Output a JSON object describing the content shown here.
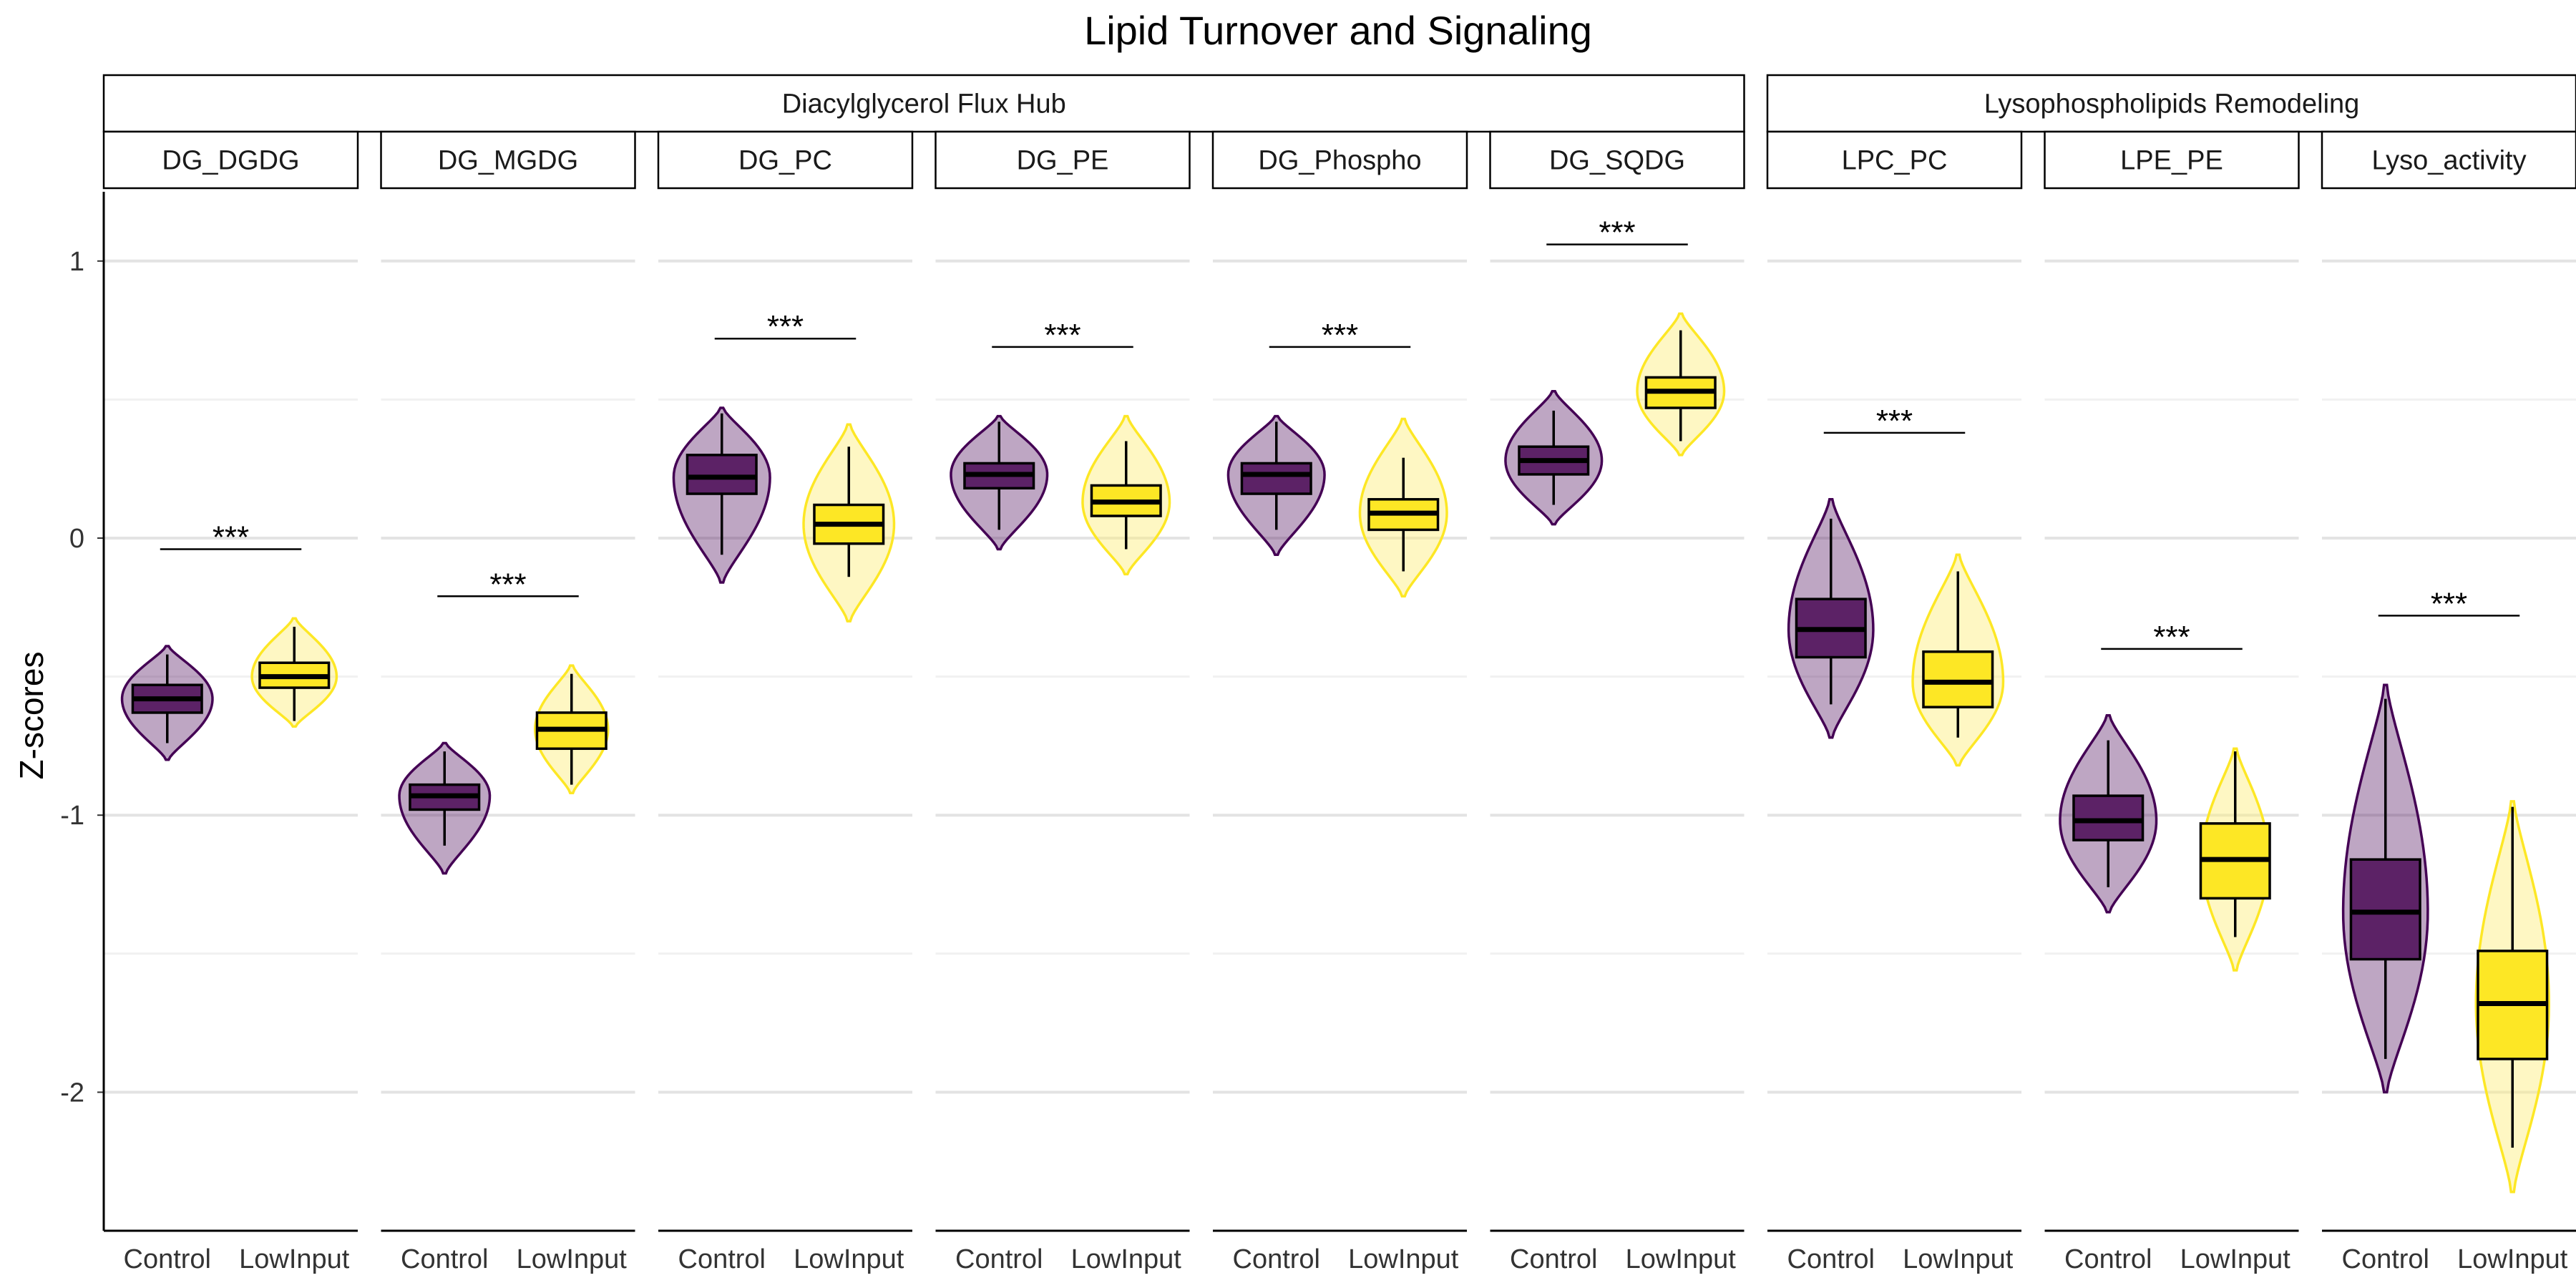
{
  "chart_data": {
    "type": "violin",
    "title": "Lipid Turnover and Signaling",
    "ylabel": "Z-scores",
    "xlabel": "",
    "ylim": [
      -2.5,
      1.25
    ],
    "yticks": [
      1,
      0,
      -1,
      -2
    ],
    "ytick_labels": [
      "1",
      "0",
      "-1",
      "-2"
    ],
    "groups": [
      "Control",
      "LowInput"
    ],
    "colors": {
      "Control": "#440154",
      "Control_box": "#5c2266",
      "LowInput": "#fde725",
      "LowInput_fill": "#fcee7a"
    },
    "grid": true,
    "strips": [
      {
        "label": "Diacylglycerol Flux Hub",
        "panels": [
          "DG_DGDG",
          "DG_MGDG",
          "DG_PC",
          "DG_PE",
          "DG_Phospho",
          "DG_SQDG"
        ]
      },
      {
        "label": "Lysophospholipids Remodeling",
        "panels": [
          "LPC_PC",
          "LPE_PE",
          "Lyso_activity"
        ]
      }
    ],
    "panels": [
      {
        "name": "DG_DGDG",
        "significance": "***",
        "sig_y": -0.04,
        "Control": {
          "vmin": -0.8,
          "vmax": -0.39,
          "whisker_low": -0.74,
          "q1": -0.63,
          "median": -0.58,
          "q3": -0.53,
          "whisker_high": -0.42,
          "vwidth": 0.75
        },
        "LowInput": {
          "vmin": -0.68,
          "vmax": -0.29,
          "whisker_low": -0.66,
          "q1": -0.54,
          "median": -0.5,
          "q3": -0.45,
          "whisker_high": -0.32,
          "vwidth": 0.7
        }
      },
      {
        "name": "DG_MGDG",
        "significance": "***",
        "sig_y": -0.21,
        "Control": {
          "vmin": -1.21,
          "vmax": -0.74,
          "whisker_low": -1.11,
          "q1": -0.98,
          "median": -0.93,
          "q3": -0.89,
          "whisker_high": -0.77,
          "vwidth": 0.75
        },
        "LowInput": {
          "vmin": -0.92,
          "vmax": -0.46,
          "whisker_low": -0.89,
          "q1": -0.76,
          "median": -0.69,
          "q3": -0.63,
          "whisker_high": -0.49,
          "vwidth": 0.6
        }
      },
      {
        "name": "DG_PC",
        "significance": "***",
        "sig_y": 0.72,
        "Control": {
          "vmin": -0.16,
          "vmax": 0.47,
          "whisker_low": -0.06,
          "q1": 0.16,
          "median": 0.22,
          "q3": 0.3,
          "whisker_high": 0.45,
          "vwidth": 0.8
        },
        "LowInput": {
          "vmin": -0.3,
          "vmax": 0.41,
          "whisker_low": -0.14,
          "q1": -0.02,
          "median": 0.05,
          "q3": 0.12,
          "whisker_high": 0.33,
          "vwidth": 0.75
        }
      },
      {
        "name": "DG_PE",
        "significance": "***",
        "sig_y": 0.69,
        "Control": {
          "vmin": -0.04,
          "vmax": 0.44,
          "whisker_low": 0.03,
          "q1": 0.18,
          "median": 0.23,
          "q3": 0.27,
          "whisker_high": 0.42,
          "vwidth": 0.8
        },
        "LowInput": {
          "vmin": -0.13,
          "vmax": 0.44,
          "whisker_low": -0.04,
          "q1": 0.08,
          "median": 0.13,
          "q3": 0.19,
          "whisker_high": 0.35,
          "vwidth": 0.72
        }
      },
      {
        "name": "DG_Phospho",
        "significance": "***",
        "sig_y": 0.69,
        "Control": {
          "vmin": -0.06,
          "vmax": 0.44,
          "whisker_low": 0.03,
          "q1": 0.16,
          "median": 0.23,
          "q3": 0.27,
          "whisker_high": 0.42,
          "vwidth": 0.8
        },
        "LowInput": {
          "vmin": -0.21,
          "vmax": 0.43,
          "whisker_low": -0.12,
          "q1": 0.03,
          "median": 0.09,
          "q3": 0.14,
          "whisker_high": 0.29,
          "vwidth": 0.72
        }
      },
      {
        "name": "DG_SQDG",
        "significance": "***",
        "sig_y": 1.06,
        "Control": {
          "vmin": 0.05,
          "vmax": 0.53,
          "whisker_low": 0.12,
          "q1": 0.23,
          "median": 0.28,
          "q3": 0.33,
          "whisker_high": 0.46,
          "vwidth": 0.8
        },
        "LowInput": {
          "vmin": 0.3,
          "vmax": 0.81,
          "whisker_low": 0.35,
          "q1": 0.47,
          "median": 0.53,
          "q3": 0.58,
          "whisker_high": 0.75,
          "vwidth": 0.72
        }
      },
      {
        "name": "LPC_PC",
        "significance": "***",
        "sig_y": 0.38,
        "Control": {
          "vmin": -0.72,
          "vmax": 0.14,
          "whisker_low": -0.6,
          "q1": -0.43,
          "median": -0.33,
          "q3": -0.22,
          "whisker_high": 0.07,
          "vwidth": 0.7
        },
        "LowInput": {
          "vmin": -0.82,
          "vmax": -0.06,
          "whisker_low": -0.72,
          "q1": -0.61,
          "median": -0.52,
          "q3": -0.41,
          "whisker_high": -0.12,
          "vwidth": 0.75
        }
      },
      {
        "name": "LPE_PE",
        "significance": "***",
        "sig_y": -0.4,
        "Control": {
          "vmin": -1.35,
          "vmax": -0.64,
          "whisker_low": -1.26,
          "q1": -1.09,
          "median": -1.02,
          "q3": -0.93,
          "whisker_high": -0.73,
          "vwidth": 0.8
        },
        "LowInput": {
          "vmin": -1.56,
          "vmax": -0.76,
          "whisker_low": -1.44,
          "q1": -1.3,
          "median": -1.16,
          "q3": -1.03,
          "whisker_high": -0.77,
          "vwidth": 0.55
        }
      },
      {
        "name": "Lyso_activity",
        "significance": "***",
        "sig_y": -0.28,
        "Control": {
          "vmin": -2.0,
          "vmax": -0.53,
          "whisker_low": -1.88,
          "q1": -1.52,
          "median": -1.35,
          "q3": -1.16,
          "whisker_high": -0.58,
          "vwidth": 0.7
        },
        "LowInput": {
          "vmin": -2.36,
          "vmax": -0.95,
          "whisker_low": -2.2,
          "q1": -1.88,
          "median": -1.68,
          "q3": -1.49,
          "whisker_high": -0.97,
          "vwidth": 0.6
        }
      }
    ]
  }
}
